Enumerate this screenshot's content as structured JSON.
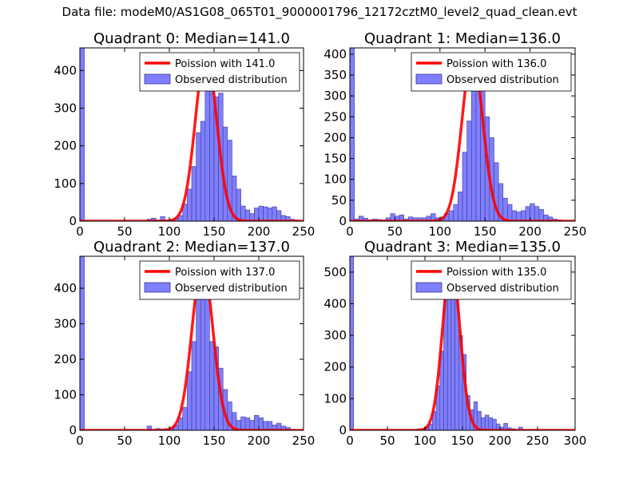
{
  "figure": {
    "suptitle": "Data file: modeM0/AS1G08_065T01_9000001796_12172cztM0_level2_quad_clean.evt"
  },
  "colors": {
    "poisson_line": "#ff0000",
    "bar_fill": "#7f7fff",
    "bar_edge": "#3b3b8f",
    "axes": "#000000",
    "background": "#ffffff"
  },
  "chart_data": [
    {
      "type": "bar",
      "title": "Quadrant 0: Median=141.0",
      "xlim": [
        0,
        250
      ],
      "ylim": [
        0,
        460
      ],
      "xticks": [
        0,
        50,
        100,
        150,
        200,
        250
      ],
      "yticks": [
        0,
        100,
        200,
        300,
        400
      ],
      "legend": {
        "placement": "top-right",
        "line_label": "Poission with 141.0",
        "bar_label": "Observed distribution"
      },
      "poisson_mean": 141.0,
      "poisson_peak": 445,
      "bin_width": 5,
      "bins": [
        [
          0,
          460
        ],
        [
          75,
          5
        ],
        [
          80,
          8
        ],
        [
          85,
          3
        ],
        [
          90,
          12
        ],
        [
          95,
          3
        ],
        [
          100,
          5
        ],
        [
          105,
          8
        ],
        [
          110,
          15
        ],
        [
          115,
          45
        ],
        [
          120,
          85
        ],
        [
          125,
          145
        ],
        [
          130,
          235
        ],
        [
          135,
          265
        ],
        [
          140,
          440
        ],
        [
          145,
          420
        ],
        [
          150,
          330
        ],
        [
          155,
          340
        ],
        [
          160,
          250
        ],
        [
          165,
          215
        ],
        [
          170,
          120
        ],
        [
          175,
          85
        ],
        [
          180,
          40
        ],
        [
          185,
          30
        ],
        [
          190,
          20
        ],
        [
          195,
          35
        ],
        [
          200,
          40
        ],
        [
          205,
          38
        ],
        [
          210,
          35
        ],
        [
          215,
          38
        ],
        [
          220,
          28
        ],
        [
          225,
          15
        ],
        [
          230,
          12
        ],
        [
          235,
          5
        ],
        [
          240,
          3
        ]
      ]
    },
    {
      "type": "bar",
      "title": "Quadrant 1: Median=136.0",
      "xlim": [
        0,
        250
      ],
      "ylim": [
        0,
        415
      ],
      "xticks": [
        0,
        50,
        100,
        150,
        200,
        250
      ],
      "yticks": [
        0,
        50,
        100,
        150,
        200,
        250,
        300,
        350,
        400
      ],
      "legend": {
        "placement": "top-right",
        "line_label": "Poission with 136.0",
        "bar_label": "Observed distribution"
      },
      "poisson_mean": 136.0,
      "poisson_peak": 395,
      "bin_width": 5,
      "bins": [
        [
          0,
          415
        ],
        [
          5,
          5
        ],
        [
          10,
          12
        ],
        [
          15,
          7
        ],
        [
          20,
          3
        ],
        [
          25,
          5
        ],
        [
          30,
          4
        ],
        [
          35,
          3
        ],
        [
          40,
          8
        ],
        [
          45,
          18
        ],
        [
          50,
          12
        ],
        [
          55,
          15
        ],
        [
          60,
          5
        ],
        [
          65,
          10
        ],
        [
          70,
          8
        ],
        [
          75,
          8
        ],
        [
          80,
          8
        ],
        [
          85,
          12
        ],
        [
          90,
          18
        ],
        [
          95,
          8
        ],
        [
          100,
          10
        ],
        [
          105,
          18
        ],
        [
          110,
          25
        ],
        [
          115,
          40
        ],
        [
          120,
          70
        ],
        [
          125,
          165
        ],
        [
          130,
          240
        ],
        [
          135,
          345
        ],
        [
          140,
          395
        ],
        [
          145,
          365
        ],
        [
          150,
          250
        ],
        [
          155,
          200
        ],
        [
          160,
          140
        ],
        [
          165,
          90
        ],
        [
          170,
          55
        ],
        [
          175,
          40
        ],
        [
          180,
          25
        ],
        [
          185,
          22
        ],
        [
          190,
          25
        ],
        [
          195,
          35
        ],
        [
          200,
          42
        ],
        [
          205,
          35
        ],
        [
          210,
          28
        ],
        [
          215,
          15
        ],
        [
          220,
          10
        ],
        [
          225,
          5
        ],
        [
          230,
          3
        ]
      ]
    },
    {
      "type": "bar",
      "title": "Quadrant 2: Median=137.0",
      "xlim": [
        0,
        250
      ],
      "ylim": [
        0,
        490
      ],
      "xticks": [
        0,
        50,
        100,
        150,
        200,
        250
      ],
      "yticks": [
        0,
        100,
        200,
        300,
        400
      ],
      "legend": {
        "placement": "top-right",
        "line_label": "Poission with 137.0",
        "bar_label": "Observed distribution"
      },
      "poisson_mean": 137.0,
      "poisson_peak": 470,
      "bin_width": 5,
      "bins": [
        [
          0,
          490
        ],
        [
          75,
          12
        ],
        [
          80,
          3
        ],
        [
          85,
          5
        ],
        [
          90,
          3
        ],
        [
          95,
          5
        ],
        [
          100,
          8
        ],
        [
          105,
          15
        ],
        [
          110,
          35
        ],
        [
          115,
          65
        ],
        [
          120,
          165
        ],
        [
          125,
          250
        ],
        [
          130,
          370
        ],
        [
          135,
          390
        ],
        [
          140,
          460
        ],
        [
          145,
          250
        ],
        [
          150,
          235
        ],
        [
          155,
          175
        ],
        [
          160,
          115
        ],
        [
          165,
          80
        ],
        [
          170,
          50
        ],
        [
          175,
          28
        ],
        [
          180,
          38
        ],
        [
          185,
          35
        ],
        [
          190,
          28
        ],
        [
          195,
          42
        ],
        [
          200,
          35
        ],
        [
          205,
          25
        ],
        [
          210,
          25
        ],
        [
          215,
          15
        ],
        [
          220,
          20
        ],
        [
          225,
          12
        ],
        [
          230,
          8
        ],
        [
          235,
          3
        ]
      ]
    },
    {
      "type": "bar",
      "title": "Quadrant 3: Median=135.0",
      "xlim": [
        0,
        300
      ],
      "ylim": [
        0,
        550
      ],
      "xticks": [
        0,
        50,
        100,
        150,
        200,
        250,
        300
      ],
      "yticks": [
        0,
        100,
        200,
        300,
        400,
        500
      ],
      "legend": {
        "placement": "top-right",
        "line_label": "Poission with 135.0",
        "bar_label": "Observed distribution"
      },
      "poisson_mean": 135.0,
      "poisson_peak": 530,
      "bin_width": 5,
      "bins": [
        [
          0,
          550
        ],
        [
          90,
          5
        ],
        [
          95,
          5
        ],
        [
          100,
          8
        ],
        [
          105,
          20
        ],
        [
          110,
          60
        ],
        [
          115,
          140
        ],
        [
          120,
          250
        ],
        [
          125,
          420
        ],
        [
          130,
          525
        ],
        [
          135,
          480
        ],
        [
          140,
          435
        ],
        [
          145,
          300
        ],
        [
          150,
          240
        ],
        [
          155,
          110
        ],
        [
          160,
          65
        ],
        [
          165,
          90
        ],
        [
          170,
          60
        ],
        [
          175,
          40
        ],
        [
          180,
          48
        ],
        [
          185,
          40
        ],
        [
          190,
          35
        ],
        [
          195,
          20
        ],
        [
          200,
          10
        ],
        [
          205,
          22
        ],
        [
          210,
          8
        ],
        [
          215,
          5
        ],
        [
          220,
          3
        ],
        [
          225,
          10
        ],
        [
          230,
          2
        ]
      ]
    }
  ]
}
